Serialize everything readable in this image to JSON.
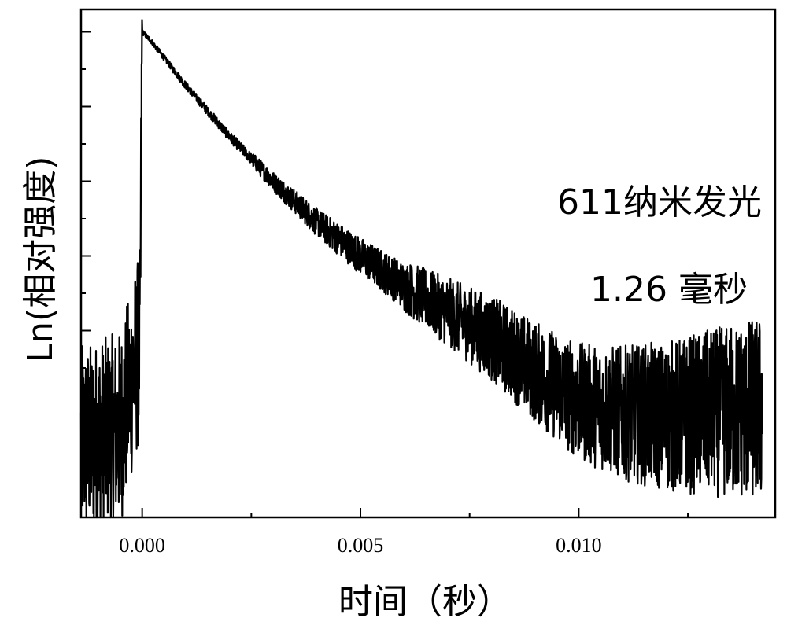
{
  "chart_data": {
    "type": "line",
    "xlabel": "时间（秒）",
    "ylabel": "Ln(相对强度)",
    "x_ticks": [
      0.0,
      0.005,
      0.01
    ],
    "x_tick_labels": [
      "0.000",
      "0.005",
      "0.010"
    ],
    "xlim": [
      -0.0014,
      0.0145
    ],
    "ylim": [
      -6.5,
      0.3
    ],
    "y_scale": "log",
    "y_tick_labels_shown": false,
    "grid": false,
    "legend": "none",
    "annotations": [
      "611纳米发光",
      "1.26 毫秒"
    ],
    "series": [
      {
        "lifetime_ms": 1.26,
        "decay_onset_s": 0.0,
        "x": [
          -0.0014,
          -0.0005,
          -5e-05,
          0.0,
          0.0002,
          0.001,
          0.002,
          0.003,
          0.004,
          0.005,
          0.006,
          0.007,
          0.008,
          0.009,
          0.01,
          0.011,
          0.012,
          0.013,
          0.0142
        ],
        "y": [
          -5.5,
          -5.3,
          -4.2,
          0.0,
          -0.12,
          -0.72,
          -1.4,
          -2.0,
          -2.55,
          -3.0,
          -3.4,
          -3.75,
          -4.1,
          -4.55,
          -4.95,
          -5.1,
          -5.15,
          -5.1,
          -5.05
        ]
      }
    ]
  },
  "colors": {
    "line": "#000000",
    "axis": "#000000",
    "background": "#ffffff"
  }
}
